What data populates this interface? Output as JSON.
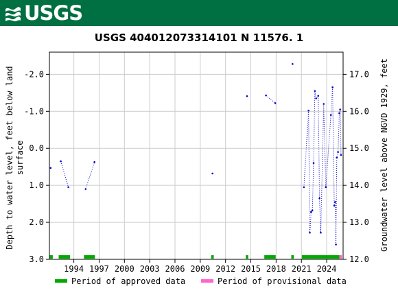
{
  "header": {
    "logo_text": "USGS",
    "logo_icon": "usgs-wave-icon",
    "background_color": "#006f41"
  },
  "chart_data": {
    "type": "scatter",
    "title": "USGS 404012073314101 N 11576. 1",
    "ylabel_left": "Depth to water level, feet below land surface",
    "ylabel_left_lines": [
      "Depth to water level, feet below land",
      "surface"
    ],
    "ylabel_right": "Groundwater level above NGVD 1929, feet",
    "xlim": [
      1991.1,
      2025.95
    ],
    "ylim_left": [
      3.0,
      -2.6
    ],
    "ylim_right": [
      12.0,
      17.6
    ],
    "left_axis_inverted": true,
    "right_axis_datum_offset": 15.0,
    "grid": true,
    "x_ticks": [
      {
        "value": 1994,
        "label": "1994"
      },
      {
        "value": 1997,
        "label": "1997"
      },
      {
        "value": 2000,
        "label": "2000"
      },
      {
        "value": 2003,
        "label": "2003"
      },
      {
        "value": 2006,
        "label": "2006"
      },
      {
        "value": 2009,
        "label": "2009"
      },
      {
        "value": 2012,
        "label": "2012"
      },
      {
        "value": 2015,
        "label": "2015"
      },
      {
        "value": 2018,
        "label": "2018"
      },
      {
        "value": 2021,
        "label": "2021"
      },
      {
        "value": 2024,
        "label": "2024"
      }
    ],
    "y_ticks_left": [
      {
        "value": -2.0,
        "label": "-2.0"
      },
      {
        "value": -1.0,
        "label": "-1.0"
      },
      {
        "value": 0.0,
        "label": "0.0"
      },
      {
        "value": 1.0,
        "label": "1.0"
      },
      {
        "value": 2.0,
        "label": "2.0"
      },
      {
        "value": 3.0,
        "label": "3.0"
      }
    ],
    "y_ticks_right": [
      {
        "value": 17.0,
        "label": "17.0"
      },
      {
        "value": 16.0,
        "label": "16.0"
      },
      {
        "value": 15.0,
        "label": "15.0"
      },
      {
        "value": 14.0,
        "label": "14.0"
      },
      {
        "value": 13.0,
        "label": "13.0"
      },
      {
        "value": 12.0,
        "label": "12.0"
      }
    ],
    "series": [
      {
        "name": "Depth to water level",
        "color": "#0000cc",
        "marker": "point",
        "line_style": "dotted",
        "segments": [
          [
            [
              1991.25,
              0.53
            ]
          ],
          [
            [
              1992.45,
              0.35
            ],
            [
              1993.35,
              1.05
            ]
          ],
          [
            [
              1995.4,
              1.1
            ],
            [
              1996.45,
              0.37
            ]
          ],
          [
            [
              2010.45,
              0.68
            ]
          ],
          [
            [
              2014.55,
              -1.41
            ]
          ],
          [
            [
              2016.8,
              -1.43
            ],
            [
              2017.9,
              -1.22
            ]
          ],
          [
            [
              2019.95,
              -2.28
            ]
          ],
          [
            [
              2021.3,
              1.05
            ],
            [
              2021.85,
              -1.02
            ],
            [
              2022.0,
              2.28
            ],
            [
              2022.15,
              1.72
            ],
            [
              2022.3,
              1.68
            ],
            [
              2022.45,
              0.4
            ],
            [
              2022.6,
              -1.55
            ],
            [
              2022.75,
              -1.35
            ],
            [
              2023.0,
              -1.42
            ],
            [
              2023.15,
              1.35
            ],
            [
              2023.3,
              2.28
            ],
            [
              2023.65,
              -1.2
            ],
            [
              2023.9,
              1.05
            ],
            [
              2024.5,
              -0.9
            ],
            [
              2024.7,
              -1.65
            ],
            [
              2024.9,
              1.55
            ],
            [
              2025.0,
              1.45
            ],
            [
              2025.1,
              2.6
            ],
            [
              2025.2,
              0.25
            ],
            [
              2025.35,
              0.1
            ],
            [
              2025.5,
              -0.95
            ],
            [
              2025.6,
              -1.05
            ],
            [
              2025.7,
              0.18
            ]
          ]
        ]
      }
    ],
    "periods": [
      {
        "kind": "approved",
        "start": 1991.15,
        "end": 1991.5
      },
      {
        "kind": "approved",
        "start": 1992.2,
        "end": 1993.55
      },
      {
        "kind": "approved",
        "start": 1995.2,
        "end": 1996.5
      },
      {
        "kind": "approved",
        "start": 2010.3,
        "end": 2010.6
      },
      {
        "kind": "approved",
        "start": 2014.4,
        "end": 2014.7
      },
      {
        "kind": "approved",
        "start": 2016.6,
        "end": 2017.95
      },
      {
        "kind": "approved",
        "start": 2019.8,
        "end": 2020.1
      },
      {
        "kind": "approved",
        "start": 2021.05,
        "end": 2025.5
      },
      {
        "kind": "provisional",
        "start": 2025.5,
        "end": 2025.8
      }
    ],
    "legend": {
      "placement": "bottom",
      "items": [
        {
          "kind": "approved",
          "label": "Period of approved data",
          "color": "#00aa00"
        },
        {
          "kind": "provisional",
          "label": "Period of provisional data",
          "color": "#ff66cc"
        }
      ]
    }
  }
}
